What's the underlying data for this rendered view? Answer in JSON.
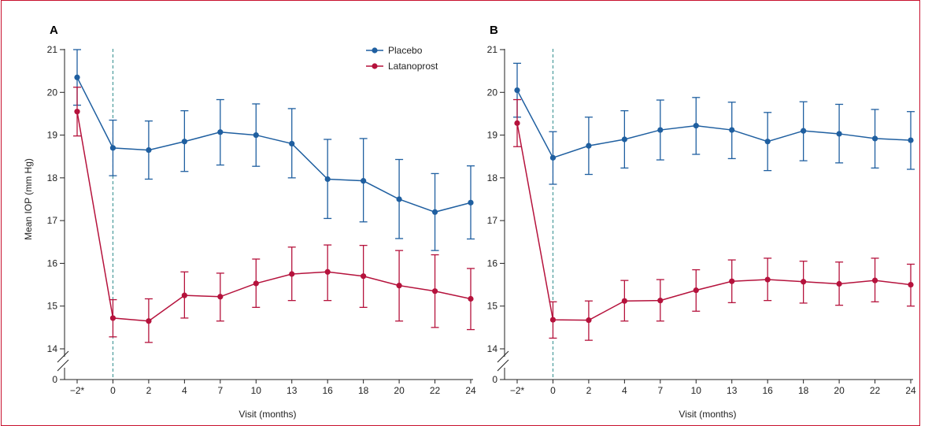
{
  "chart_data": [
    {
      "type": "line",
      "panel_label": "A",
      "xlabel": "Visit (months)",
      "ylabel": "Mean IOP (mm Hg)",
      "x_labels": [
        "−2*",
        "0",
        "2",
        "4",
        "7",
        "10",
        "13",
        "16",
        "18",
        "20",
        "22",
        "24"
      ],
      "y_ticks": [
        0,
        14,
        15,
        16,
        17,
        18,
        19,
        20,
        21
      ],
      "ylim": [
        14,
        21
      ],
      "axis_break": true,
      "baseline_marker": "0",
      "legend": "top-right",
      "series": [
        {
          "name": "Placebo",
          "color": "#1f5fa0",
          "values": [
            20.35,
            18.7,
            18.65,
            18.85,
            19.07,
            19.0,
            18.8,
            17.97,
            17.93,
            17.5,
            17.2,
            17.42
          ],
          "lower": [
            19.7,
            18.05,
            17.97,
            18.15,
            18.3,
            18.27,
            18.0,
            17.05,
            16.97,
            16.58,
            16.3,
            16.57
          ],
          "upper": [
            21.0,
            19.35,
            19.33,
            19.57,
            19.83,
            19.73,
            19.62,
            18.9,
            18.92,
            18.43,
            18.1,
            18.28
          ]
        },
        {
          "name": "Latanoprost",
          "color": "#b5123c",
          "values": [
            19.55,
            14.72,
            14.65,
            15.25,
            15.22,
            15.53,
            15.75,
            15.8,
            15.7,
            15.48,
            15.35,
            15.17
          ],
          "lower": [
            18.98,
            14.28,
            14.15,
            14.72,
            14.65,
            14.97,
            15.13,
            15.13,
            14.97,
            14.65,
            14.5,
            14.45
          ],
          "upper": [
            20.12,
            15.15,
            15.17,
            15.8,
            15.77,
            16.1,
            16.38,
            16.43,
            16.42,
            16.3,
            16.2,
            15.88
          ]
        }
      ]
    },
    {
      "type": "line",
      "panel_label": "B",
      "xlabel": "Visit (months)",
      "ylabel": "",
      "x_labels": [
        "−2*",
        "0",
        "2",
        "4",
        "7",
        "10",
        "13",
        "16",
        "18",
        "20",
        "22",
        "24"
      ],
      "y_ticks": [
        0,
        14,
        15,
        16,
        17,
        18,
        19,
        20,
        21
      ],
      "ylim": [
        14,
        21
      ],
      "axis_break": true,
      "baseline_marker": "0",
      "series": [
        {
          "name": "Placebo",
          "color": "#1f5fa0",
          "values": [
            20.05,
            18.47,
            18.75,
            18.9,
            19.12,
            19.22,
            19.12,
            18.85,
            19.1,
            19.03,
            18.92,
            18.88
          ],
          "lower": [
            19.42,
            17.85,
            18.08,
            18.23,
            18.42,
            18.55,
            18.45,
            18.17,
            18.4,
            18.35,
            18.23,
            18.2
          ],
          "upper": [
            20.68,
            19.08,
            19.42,
            19.57,
            19.82,
            19.88,
            19.77,
            19.53,
            19.78,
            19.72,
            19.6,
            19.55
          ]
        },
        {
          "name": "Latanoprost",
          "color": "#b5123c",
          "values": [
            19.28,
            14.68,
            14.67,
            15.12,
            15.13,
            15.37,
            15.58,
            15.62,
            15.57,
            15.52,
            15.6,
            15.5
          ],
          "lower": [
            18.73,
            14.25,
            14.2,
            14.65,
            14.65,
            14.88,
            15.08,
            15.13,
            15.07,
            15.02,
            15.1,
            15.0
          ],
          "upper": [
            19.83,
            15.1,
            15.12,
            15.6,
            15.62,
            15.85,
            16.08,
            16.12,
            16.05,
            16.03,
            16.12,
            15.98
          ]
        }
      ]
    }
  ]
}
